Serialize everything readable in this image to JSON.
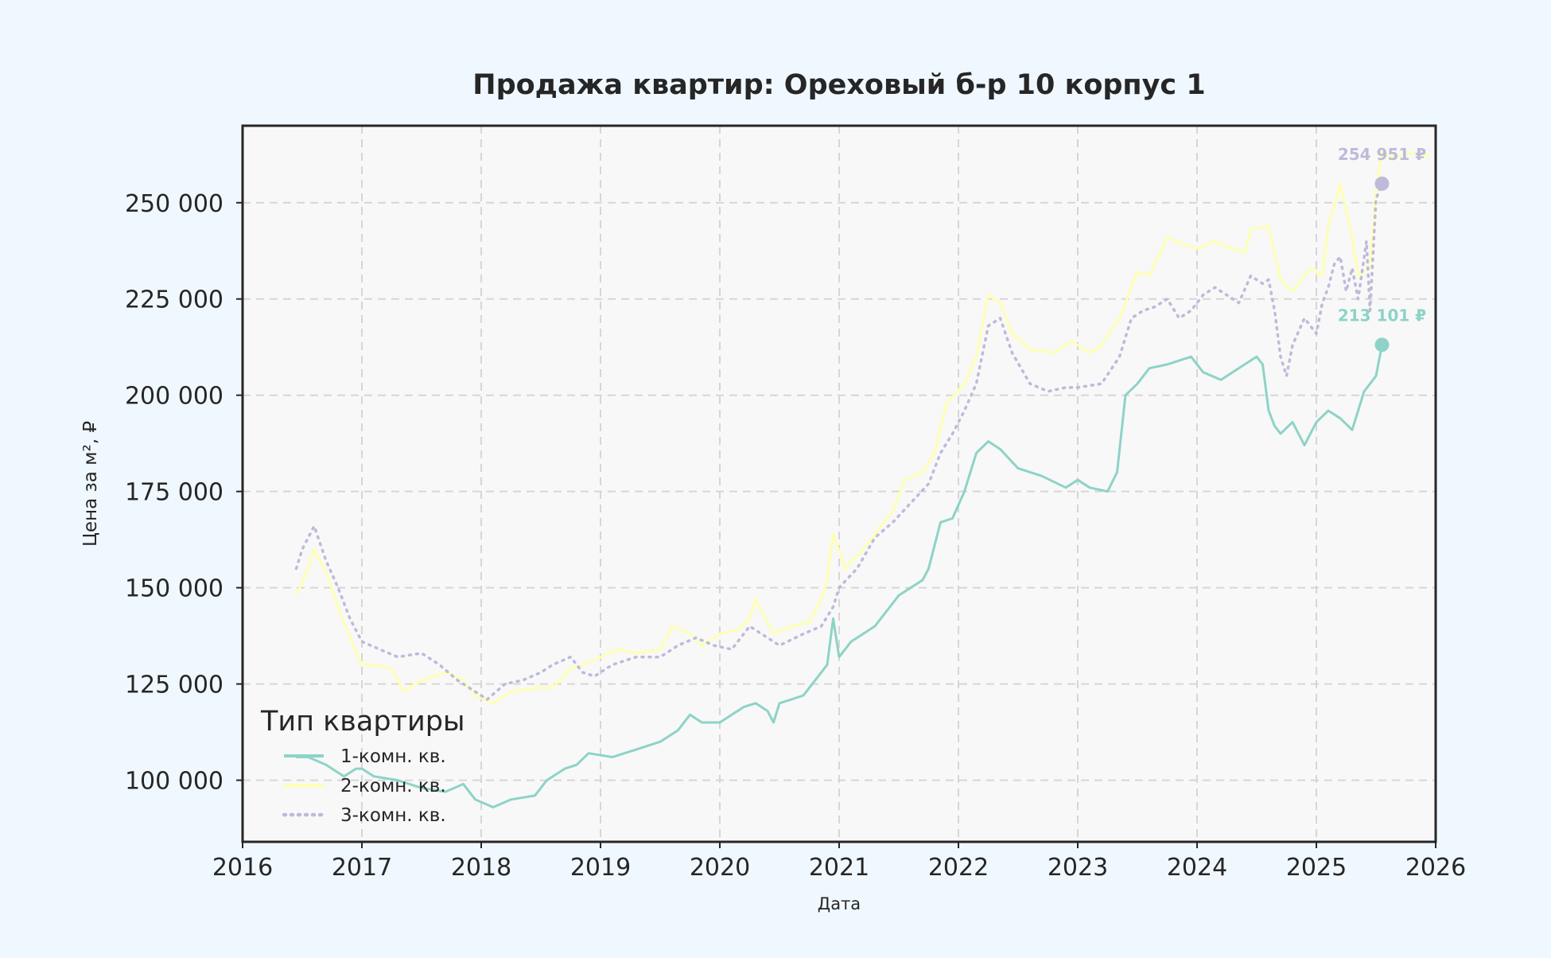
{
  "colors": {
    "page_bg": "#f0f8ff",
    "plot_bg": "#f8f8f8",
    "grid": "#d6d6d6",
    "axis": "#262626",
    "text": "#262626",
    "series_1": "#8dd3c7",
    "series_2": "#ffffb3",
    "series_3": "#bebada"
  },
  "chart_data": {
    "type": "line",
    "title": "Продажа квартир: Ореховый б-р 10 корпус 1",
    "xlabel": "Дата",
    "ylabel": "Цена за м², ₽",
    "xlim": [
      2016.0,
      2026.0
    ],
    "ylim": [
      84000,
      270000
    ],
    "x_ticks": [
      2016,
      2017,
      2018,
      2019,
      2020,
      2021,
      2022,
      2023,
      2024,
      2025,
      2026
    ],
    "x_tick_labels": [
      "2016",
      "2017",
      "2018",
      "2019",
      "2020",
      "2021",
      "2022",
      "2023",
      "2024",
      "2025",
      "2026"
    ],
    "y_ticks": [
      100000,
      125000,
      150000,
      175000,
      200000,
      225000,
      250000
    ],
    "y_tick_labels": [
      "100 000",
      "125 000",
      "150 000",
      "175 000",
      "200 000",
      "225 000",
      "250 000"
    ],
    "grid": true,
    "legend": {
      "title": "Тип квартиры",
      "placement": "lower-left",
      "entries": [
        "1-комн. кв.",
        "2-комн. кв.",
        "3-комн. кв."
      ]
    },
    "series": [
      {
        "name": "1-комн. кв.",
        "style": "solid",
        "color": "#8dd3c7",
        "x": [
          2016.45,
          2016.55,
          2016.7,
          2016.85,
          2016.95,
          2017.0,
          2017.1,
          2017.3,
          2017.5,
          2017.7,
          2017.85,
          2017.95,
          2018.1,
          2018.25,
          2018.45,
          2018.55,
          2018.7,
          2018.8,
          2018.9,
          2019.1,
          2019.3,
          2019.5,
          2019.65,
          2019.75,
          2019.85,
          2020.0,
          2020.1,
          2020.2,
          2020.3,
          2020.4,
          2020.45,
          2020.5,
          2020.6,
          2020.7,
          2020.8,
          2020.9,
          2020.95,
          2021.0,
          2021.1,
          2021.3,
          2021.5,
          2021.7,
          2021.75,
          2021.85,
          2021.95,
          2022.05,
          2022.15,
          2022.25,
          2022.35,
          2022.5,
          2022.7,
          2022.9,
          2023.0,
          2023.1,
          2023.25,
          2023.33,
          2023.4,
          2023.5,
          2023.6,
          2023.75,
          2023.85,
          2023.95,
          2024.05,
          2024.2,
          2024.35,
          2024.5,
          2024.55,
          2024.6,
          2024.65,
          2024.7,
          2024.8,
          2024.9,
          2025.0,
          2025.1,
          2025.2,
          2025.3,
          2025.4,
          2025.5,
          2025.55
        ],
        "y": [
          106000,
          106000,
          104000,
          101000,
          103000,
          103000,
          101000,
          100000,
          98000,
          97000,
          99000,
          95000,
          93000,
          95000,
          96000,
          100000,
          103000,
          104000,
          107000,
          106000,
          108000,
          110000,
          113000,
          117000,
          115000,
          115000,
          117000,
          119000,
          120000,
          118000,
          115000,
          120000,
          121000,
          122000,
          126000,
          130000,
          142000,
          132000,
          136000,
          140000,
          148000,
          152000,
          155000,
          167000,
          168000,
          175000,
          185000,
          188000,
          186000,
          181000,
          179000,
          176000,
          178000,
          176000,
          175000,
          180000,
          200000,
          203000,
          207000,
          208000,
          209000,
          210000,
          206000,
          204000,
          207000,
          210000,
          208000,
          196000,
          192000,
          190000,
          193000,
          187000,
          193000,
          196000,
          194000,
          191000,
          201000,
          205000,
          213101
        ]
      },
      {
        "name": "2-комн. кв.",
        "style": "solid",
        "color": "#ffffb3",
        "x": [
          2016.45,
          2016.55,
          2016.6,
          2016.7,
          2016.8,
          2016.9,
          2017.0,
          2017.1,
          2017.25,
          2017.35,
          2017.5,
          2017.7,
          2017.85,
          2017.95,
          2018.1,
          2018.25,
          2018.45,
          2018.6,
          2018.75,
          2018.85,
          2019.0,
          2019.15,
          2019.3,
          2019.5,
          2019.6,
          2019.75,
          2019.85,
          2020.0,
          2020.15,
          2020.25,
          2020.3,
          2020.45,
          2020.6,
          2020.75,
          2020.85,
          2020.9,
          2020.95,
          2021.05,
          2021.2,
          2021.35,
          2021.45,
          2021.55,
          2021.7,
          2021.8,
          2021.9,
          2022.05,
          2022.15,
          2022.25,
          2022.35,
          2022.45,
          2022.6,
          2022.8,
          2022.95,
          2023.1,
          2023.2,
          2023.35,
          2023.4,
          2023.5,
          2023.6,
          2023.75,
          2023.9,
          2024.0,
          2024.15,
          2024.3,
          2024.4,
          2024.45,
          2024.6,
          2024.7,
          2024.8,
          2024.95,
          2025.05,
          2025.1,
          2025.2,
          2025.3,
          2025.35,
          2025.45,
          2025.5,
          2025.55,
          2025.6,
          2025.7,
          2025.8,
          2025.95
        ],
        "y": [
          148000,
          155000,
          160000,
          154000,
          145000,
          137000,
          130000,
          130000,
          129000,
          123000,
          126000,
          128000,
          126000,
          122000,
          120000,
          123000,
          124000,
          124000,
          129000,
          130000,
          132000,
          134000,
          133000,
          134000,
          140000,
          138000,
          135000,
          138000,
          139000,
          142000,
          147000,
          138000,
          140000,
          141000,
          147000,
          152000,
          164000,
          155000,
          160000,
          166000,
          170000,
          178000,
          180000,
          185000,
          198000,
          203000,
          210000,
          226000,
          224000,
          216000,
          212000,
          211000,
          214000,
          211000,
          213000,
          220000,
          224000,
          232000,
          231000,
          241000,
          239000,
          238000,
          240000,
          238000,
          237000,
          243000,
          244000,
          230000,
          227000,
          233000,
          231000,
          244000,
          255000,
          241000,
          231000,
          233000,
          253000,
          264000,
          262000,
          262000,
          263000,
          262000
        ]
      },
      {
        "name": "3-комн. кв.",
        "style": "dotted",
        "color": "#bebada",
        "x": [
          2016.45,
          2016.5,
          2016.6,
          2016.7,
          2016.8,
          2016.9,
          2017.0,
          2017.15,
          2017.3,
          2017.5,
          2017.65,
          2017.8,
          2017.9,
          2018.05,
          2018.2,
          2018.35,
          2018.5,
          2018.6,
          2018.75,
          2018.85,
          2018.95,
          2019.1,
          2019.3,
          2019.5,
          2019.65,
          2019.8,
          2019.95,
          2020.1,
          2020.25,
          2020.35,
          2020.5,
          2020.7,
          2020.85,
          2020.95,
          2021.0,
          2021.15,
          2021.3,
          2021.45,
          2021.6,
          2021.75,
          2021.85,
          2021.95,
          2022.05,
          2022.15,
          2022.25,
          2022.35,
          2022.45,
          2022.6,
          2022.75,
          2022.9,
          2023.0,
          2023.2,
          2023.35,
          2023.45,
          2023.55,
          2023.65,
          2023.75,
          2023.85,
          2023.95,
          2024.05,
          2024.15,
          2024.25,
          2024.35,
          2024.45,
          2024.55,
          2024.6,
          2024.65,
          2024.7,
          2024.75,
          2024.8,
          2024.9,
          2025.0,
          2025.05,
          2025.1,
          2025.15,
          2025.2,
          2025.25,
          2025.3,
          2025.35,
          2025.42,
          2025.45,
          2025.5,
          2025.55
        ],
        "y": [
          155000,
          160000,
          166000,
          157000,
          150000,
          142000,
          136000,
          134000,
          132000,
          133000,
          130000,
          126000,
          124000,
          121000,
          125000,
          126000,
          128000,
          130000,
          132000,
          128000,
          127000,
          130000,
          132000,
          132000,
          135000,
          137000,
          135000,
          134000,
          140000,
          138000,
          135000,
          138000,
          140000,
          145000,
          150000,
          155000,
          163000,
          167000,
          172000,
          177000,
          185000,
          190000,
          196000,
          203000,
          218000,
          220000,
          211000,
          203000,
          201000,
          202000,
          202000,
          203000,
          210000,
          220000,
          222000,
          223000,
          225000,
          220000,
          222000,
          226000,
          228000,
          226000,
          224000,
          231000,
          229000,
          230000,
          222000,
          210000,
          205000,
          213000,
          220000,
          216000,
          224000,
          228000,
          234000,
          236000,
          227000,
          233000,
          225000,
          240000,
          222000,
          251000,
          254951
        ]
      }
    ],
    "annotations": [
      {
        "series": "3-комн. кв.",
        "x": 2025.55,
        "y": 254951,
        "text": "254 951 ₽"
      },
      {
        "series": "1-комн. кв.",
        "x": 2025.55,
        "y": 213101,
        "text": "213 101 ₽"
      }
    ]
  }
}
